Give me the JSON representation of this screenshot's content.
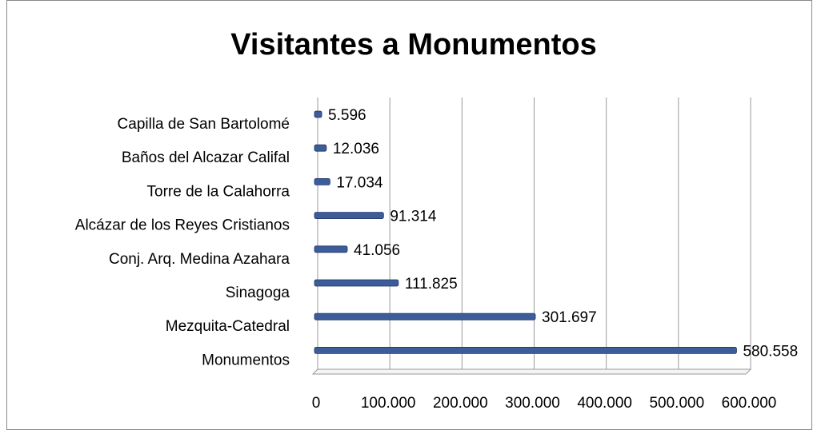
{
  "chart_data": {
    "type": "bar",
    "orientation": "horizontal",
    "title": "Visitantes a Monumentos",
    "categories": [
      "Capilla de San Bartolomé",
      "Baños del Alcazar Califal",
      "Torre de la Calahorra",
      "Alcázar de los Reyes Cristianos",
      "Conj. Arq. Medina Azahara",
      "Sinagoga",
      "Mezquita-Catedral",
      "Monumentos"
    ],
    "values": [
      5596,
      12036,
      17034,
      91314,
      41056,
      111825,
      301697,
      580558
    ],
    "value_labels": [
      "5.596",
      "12.036",
      "17.034",
      "91.314",
      "41.056",
      "111.825",
      "301.697",
      "580.558"
    ],
    "color": "#3c5d9a",
    "xlim": [
      0,
      600000
    ],
    "xticks": [
      0,
      {
        "value": 100000,
        "label": "100.000"
      },
      {
        "value": 200000,
        "label": "200.000"
      },
      {
        "value": 300000,
        "label": "300.000"
      },
      {
        "value": 400000,
        "label": "400.000"
      },
      {
        "value": 500000,
        "label": "500.000"
      },
      {
        "value": 600000,
        "label": "600.000"
      }
    ],
    "grid": true
  }
}
